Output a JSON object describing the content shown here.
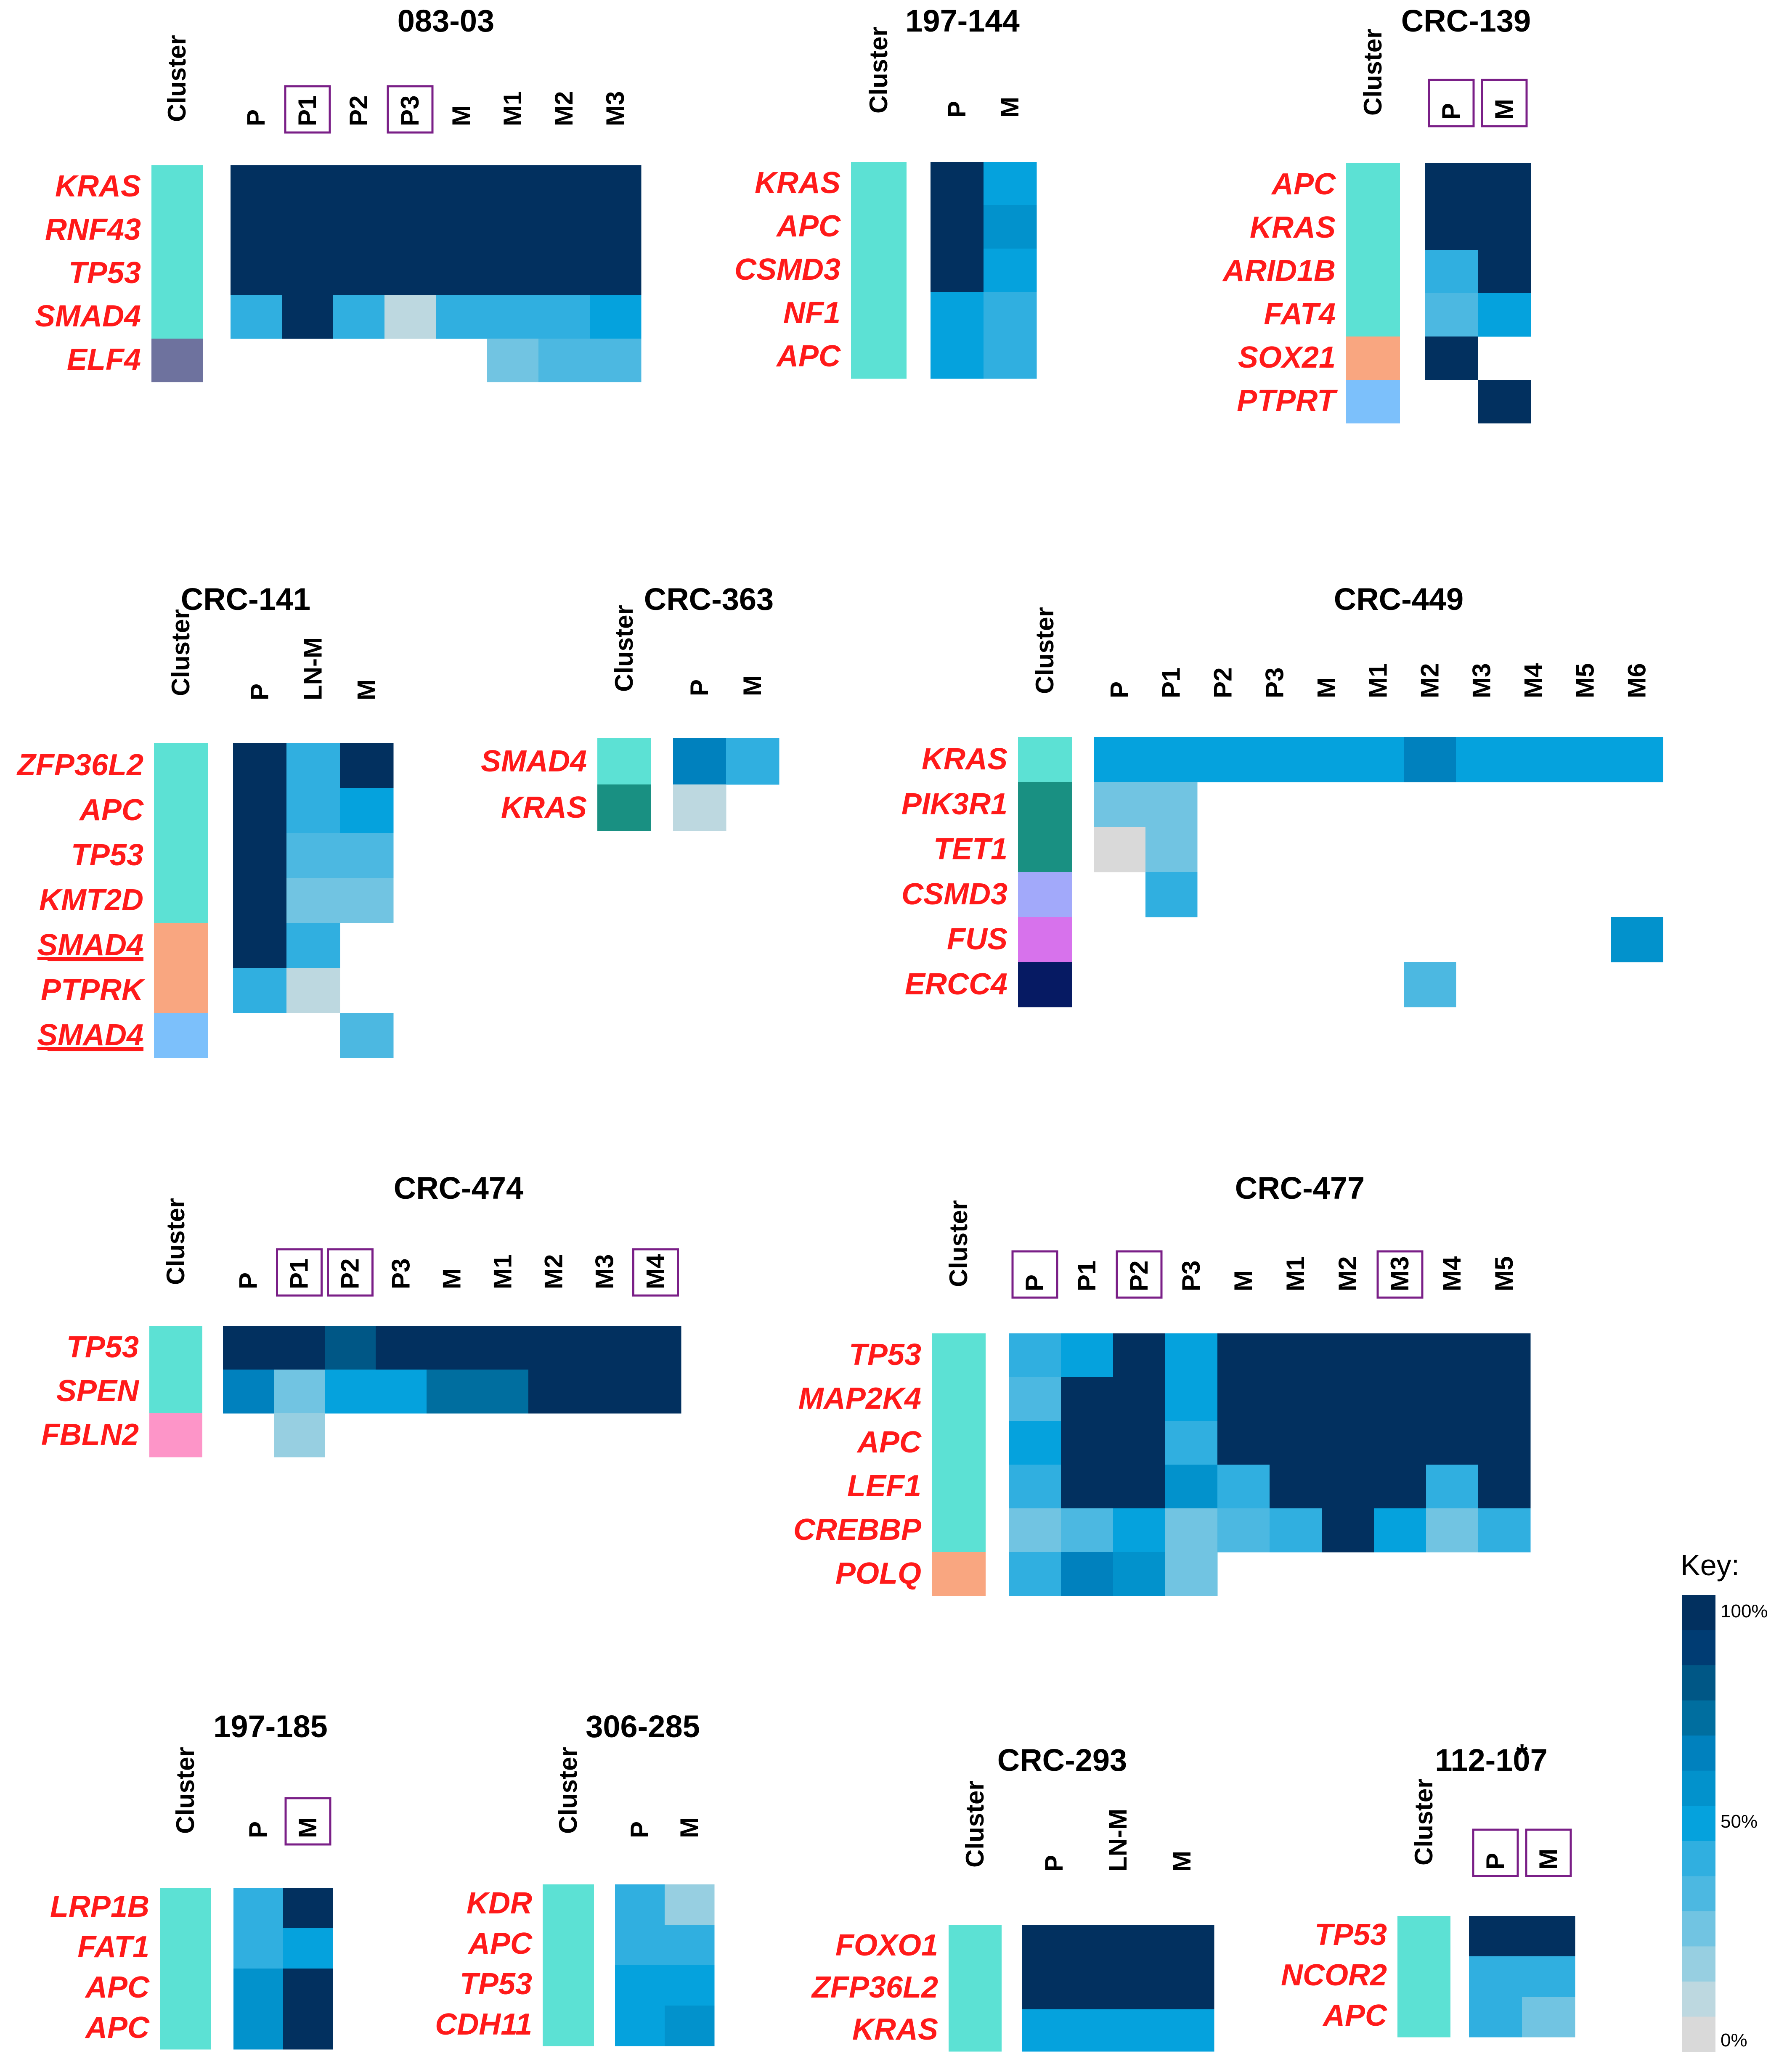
{
  "chart_data": {
    "type": "heatmap",
    "value_unit": "percent of cells carrying the mutation",
    "panels": [
      {
        "id": "083-03",
        "title": "083-03",
        "cluster_label": "Cluster",
        "columns": [
          "P",
          "P1",
          "P2",
          "P3",
          "M",
          "M1",
          "M2",
          "M3"
        ],
        "boxed_columns": [
          "P1",
          "P3"
        ],
        "genes": [
          "KRAS",
          "RNF43",
          "TP53",
          "SMAD4",
          "ELF4"
        ],
        "underlined": [],
        "cluster_colors": [
          "#5ce1d4",
          "#5ce1d4",
          "#5ce1d4",
          "#5ce1d4",
          "#6e729e"
        ],
        "values": [
          [
            100,
            100,
            100,
            100,
            100,
            100,
            100,
            100
          ],
          [
            100,
            100,
            100,
            100,
            100,
            100,
            100,
            100
          ],
          [
            100,
            100,
            100,
            100,
            100,
            100,
            100,
            100
          ],
          [
            42,
            100,
            42,
            12,
            45,
            45,
            40,
            50
          ],
          [
            0,
            0,
            0,
            0,
            0,
            22,
            32,
            32
          ]
        ]
      },
      {
        "id": "197-144",
        "title": "197-144",
        "cluster_label": "Cluster",
        "columns": [
          "P",
          "M"
        ],
        "boxed_columns": [],
        "genes": [
          "KRAS",
          "APC",
          "CSMD3",
          "NF1",
          "APC"
        ],
        "underlined": [],
        "cluster_colors": [
          "#5ce1d4",
          "#5ce1d4",
          "#5ce1d4",
          "#5ce1d4",
          "#5ce1d4"
        ],
        "values": [
          [
            100,
            52
          ],
          [
            100,
            56
          ],
          [
            100,
            52
          ],
          [
            52,
            42
          ],
          [
            52,
            42
          ]
        ]
      },
      {
        "id": "CRC-139",
        "title": "CRC-139",
        "cluster_label": "Cluster",
        "columns": [
          "P",
          "M"
        ],
        "boxed_columns": [
          "P",
          "M"
        ],
        "genes": [
          "APC",
          "KRAS",
          "ARID1B",
          "FAT4",
          "SOX21",
          "PTPRT"
        ],
        "underlined": [],
        "cluster_colors": [
          "#5ce1d4",
          "#5ce1d4",
          "#5ce1d4",
          "#5ce1d4",
          "#f9a680",
          "#7cc0fb"
        ],
        "values": [
          [
            100,
            100
          ],
          [
            100,
            100
          ],
          [
            42,
            100
          ],
          [
            32,
            52
          ],
          [
            100,
            0
          ],
          [
            0,
            100
          ]
        ]
      },
      {
        "id": "CRC-141",
        "title": "CRC-141",
        "cluster_label": "Cluster",
        "columns": [
          "P",
          "LN-M",
          "M"
        ],
        "boxed_columns": [],
        "genes": [
          "ZFP36L2",
          "APC",
          "TP53",
          "KMT2D",
          "SMAD4",
          "PTPRK",
          "SMAD4"
        ],
        "underlined": [
          4,
          6
        ],
        "cluster_colors": [
          "#5ce1d4",
          "#5ce1d4",
          "#5ce1d4",
          "#5ce1d4",
          "#f9a680",
          "#f9a680",
          "#7cc0fb"
        ],
        "values": [
          [
            100,
            40,
            100
          ],
          [
            100,
            40,
            48
          ],
          [
            100,
            36,
            34
          ],
          [
            100,
            22,
            22
          ],
          [
            100,
            42,
            0
          ],
          [
            44,
            12,
            0
          ],
          [
            0,
            0,
            32
          ]
        ]
      },
      {
        "id": "CRC-363",
        "title": "CRC-363",
        "cluster_label": "Cluster",
        "columns": [
          "P",
          "M"
        ],
        "boxed_columns": [],
        "genes": [
          "SMAD4",
          "KRAS"
        ],
        "underlined": [],
        "cluster_colors": [
          "#5ce1d4",
          "#199082"
        ],
        "values": [
          [
            70,
            44
          ],
          [
            8,
            0
          ]
        ]
      },
      {
        "id": "CRC-449",
        "title": "CRC-449",
        "cluster_label": "Cluster",
        "columns": [
          "P",
          "P1",
          "P2",
          "P3",
          "M",
          "M1",
          "M2",
          "M3",
          "M4",
          "M5",
          "M6"
        ],
        "boxed_columns": [],
        "genes": [
          "KRAS",
          "PIK3R1",
          "TET1",
          "CSMD3",
          "FUS",
          "ERCC4"
        ],
        "underlined": [],
        "cluster_colors": [
          "#5ce1d4",
          "#199082",
          "#199082",
          "#a2a9fa",
          "#d772ec",
          "#061a63"
        ],
        "values": [
          [
            46,
            52,
            46,
            50,
            54,
            48,
            64,
            52,
            50,
            52,
            54
          ],
          [
            26,
            26,
            0,
            0,
            0,
            0,
            0,
            0,
            0,
            0,
            0
          ],
          [
            4,
            26,
            0,
            0,
            0,
            0,
            0,
            0,
            0,
            0,
            0
          ],
          [
            0,
            40,
            0,
            0,
            0,
            0,
            0,
            0,
            0,
            0,
            0
          ],
          [
            0,
            0,
            0,
            0,
            0,
            0,
            0,
            0,
            0,
            0,
            56
          ],
          [
            0,
            0,
            0,
            0,
            0,
            0,
            36,
            0,
            0,
            0,
            0
          ]
        ]
      },
      {
        "id": "CRC-474",
        "title": "CRC-474",
        "cluster_label": "Cluster",
        "columns": [
          "P",
          "P1",
          "P2",
          "P3",
          "M",
          "M1",
          "M2",
          "M3",
          "M4"
        ],
        "boxed_columns": [
          "P1",
          "P2",
          "M4"
        ],
        "genes": [
          "TP53",
          "SPEN",
          "FBLN2"
        ],
        "underlined": [],
        "cluster_colors": [
          "#5ce1d4",
          "#5ce1d4",
          "#fd95c8"
        ],
        "values": [
          [
            100,
            100,
            84,
            100,
            100,
            100,
            100,
            100,
            100
          ],
          [
            68,
            28,
            46,
            54,
            72,
            72,
            100,
            100,
            100
          ],
          [
            0,
            20,
            0,
            0,
            0,
            0,
            0,
            0,
            0
          ]
        ]
      },
      {
        "id": "CRC-477",
        "title": "CRC-477",
        "cluster_label": "Cluster",
        "columns": [
          "P",
          "P1",
          "P2",
          "P3",
          "M",
          "M1",
          "M2",
          "M3",
          "M4",
          "M5"
        ],
        "boxed_columns": [
          "P",
          "P2",
          "M3"
        ],
        "genes": [
          "TP53",
          "MAP2K4",
          "APC",
          "LEF1",
          "CREBBP",
          "POLQ"
        ],
        "underlined": [],
        "cluster_colors": [
          "#5ce1d4",
          "#5ce1d4",
          "#5ce1d4",
          "#5ce1d4",
          "#5ce1d4",
          "#f9a680"
        ],
        "values": [
          [
            38,
            54,
            100,
            54,
            100,
            100,
            100,
            100,
            100,
            100
          ],
          [
            36,
            100,
            100,
            54,
            100,
            100,
            100,
            100,
            100,
            100
          ],
          [
            52,
            100,
            100,
            44,
            100,
            100,
            100,
            100,
            100,
            100
          ],
          [
            44,
            100,
            100,
            56,
            44,
            100,
            100,
            100,
            40,
            100
          ],
          [
            22,
            32,
            52,
            28,
            34,
            44,
            100,
            52,
            24,
            44
          ],
          [
            42,
            66,
            56,
            26,
            0,
            0,
            0,
            0,
            0,
            0
          ]
        ]
      },
      {
        "id": "197-185",
        "title": "197-185",
        "cluster_label": "Cluster",
        "columns": [
          "P",
          "M"
        ],
        "boxed_columns": [
          "M"
        ],
        "genes": [
          "LRP1B",
          "FAT1",
          "APC",
          "APC"
        ],
        "underlined": [],
        "cluster_colors": [
          "#5ce1d4",
          "#5ce1d4",
          "#5ce1d4",
          "#5ce1d4"
        ],
        "values": [
          [
            44,
            100
          ],
          [
            44,
            54
          ],
          [
            58,
            100
          ],
          [
            58,
            100
          ]
        ]
      },
      {
        "id": "306-285",
        "title": "306-285",
        "cluster_label": "Cluster",
        "columns": [
          "P",
          "M"
        ],
        "boxed_columns": [],
        "genes": [
          "KDR",
          "APC",
          "TP53",
          "CDH11"
        ],
        "underlined": [],
        "cluster_colors": [
          "#5ce1d4",
          "#5ce1d4",
          "#5ce1d4",
          "#5ce1d4"
        ],
        "values": [
          [
            42,
            18
          ],
          [
            42,
            40
          ],
          [
            54,
            54
          ],
          [
            54,
            58
          ]
        ]
      },
      {
        "id": "CRC-293",
        "title": "CRC-293",
        "cluster_label": "Cluster",
        "columns": [
          "P",
          "LN-M",
          "M"
        ],
        "boxed_columns": [],
        "genes": [
          "FOXO1",
          "ZFP36L2",
          "KRAS"
        ],
        "underlined": [],
        "cluster_colors": [
          "#5ce1d4",
          "#5ce1d4",
          "#5ce1d4"
        ],
        "values": [
          [
            100,
            100,
            100
          ],
          [
            100,
            100,
            100
          ],
          [
            46,
            46,
            52
          ]
        ]
      },
      {
        "id": "112-107",
        "title": "112-107",
        "annotation": "*",
        "cluster_label": "Cluster",
        "columns": [
          "P",
          "M"
        ],
        "boxed_columns": [
          "P",
          "M"
        ],
        "genes": [
          "TP53",
          "NCOR2",
          "APC"
        ],
        "underlined": [],
        "cluster_colors": [
          "#5ce1d4",
          "#5ce1d4",
          "#5ce1d4"
        ],
        "values": [
          [
            100,
            100
          ],
          [
            44,
            38
          ],
          [
            44,
            26
          ]
        ]
      }
    ],
    "key": {
      "title": "Key:",
      "labels": [
        "100%",
        "50%",
        "0%"
      ],
      "scale_colors": [
        "#02305f",
        "#003c73",
        "#005786",
        "#006e9f",
        "#0081be",
        "#0292cc",
        "#05a2dd",
        "#30afe0",
        "#4cb8e1",
        "#71c4e2",
        "#97cfe1",
        "#bdd8e0",
        "#d9d9d9"
      ]
    }
  }
}
